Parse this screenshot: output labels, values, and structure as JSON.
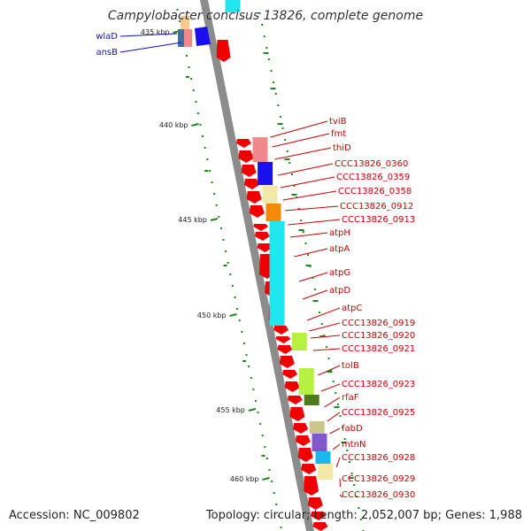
{
  "title": "Campylobacter concisus 13826, complete genome",
  "footer": {
    "accession": "Accession: NC_009802",
    "summary": "Topology: circular; Length: 2,052,007 bp; Genes: 1,988"
  },
  "colors": {
    "backbone": "#8c8c8c",
    "tick": "#1a8a1a",
    "cds": "#ee0000",
    "left_label": "#1010cc",
    "right_label": "#cc0000"
  },
  "ticks": [
    "435 kbp",
    "440 kbp",
    "445 kbp",
    "450 kbp",
    "455 kbp",
    "460 kbp"
  ],
  "left_genes": [
    "wlaD",
    "ansB"
  ],
  "right_genes": [
    "tviB",
    "fmt",
    "thiD",
    "CCC13826_0360",
    "CCC13826_0359",
    "CCC13826_0358",
    "CCC13826_0912",
    "CCC13826_0913",
    "atpH",
    "atpA",
    "atpG",
    "atpD",
    "atpC",
    "CCC13826_0919",
    "CCC13826_0920",
    "CCC13826_0921",
    "tolB",
    "CCC13826_0923",
    "rfaF",
    "CCC13826_0925",
    "fabD",
    "mtnN",
    "CCC13826_0928",
    "CCC13826_0929",
    "CCC13826_0930"
  ]
}
